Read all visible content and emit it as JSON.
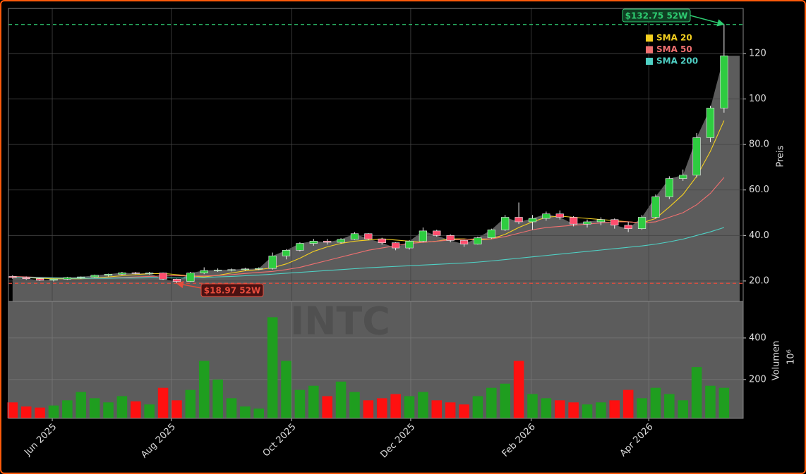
{
  "chart_data": {
    "type": "candlestick",
    "watermark": "INTC",
    "ohlc": {
      "open": [
        22,
        21.5,
        21,
        20.3,
        20.8,
        21.5,
        21.8,
        22.5,
        23,
        23.6,
        23.3,
        23.5,
        20.8,
        19.8,
        23.5,
        24.6,
        24.8,
        25,
        25.3,
        25.5,
        31,
        33.5,
        36.5,
        37.5,
        37,
        38.3,
        40.8,
        38.5,
        36.8,
        34.5,
        37.5,
        42,
        40,
        37.8,
        36.2,
        39,
        42.5,
        48,
        46,
        47.5,
        49.5,
        48,
        45,
        46,
        47,
        44.5,
        43,
        48,
        57,
        65,
        66.5,
        83,
        96
      ],
      "high": [
        22.5,
        22,
        21.3,
        21,
        21.8,
        22,
        22.8,
        23.2,
        24,
        24,
        24,
        23.7,
        21,
        24,
        26,
        25.5,
        25.5,
        25.8,
        26,
        32.5,
        34,
        37,
        38.5,
        38.5,
        38.8,
        41.5,
        41,
        39,
        37,
        38,
        43.5,
        42.5,
        40.5,
        38,
        39.5,
        43,
        49,
        54.5,
        49,
        50.5,
        51,
        48.5,
        47,
        48,
        47.5,
        46,
        49,
        58,
        66,
        69,
        85,
        97,
        132.75
      ],
      "low": [
        21,
        20.5,
        20,
        19.8,
        20.5,
        21,
        21.5,
        22,
        22.7,
        23,
        22.8,
        20.5,
        18.97,
        19.6,
        23,
        24,
        24.2,
        24.5,
        24.8,
        25,
        29.5,
        33,
        35.5,
        36,
        36.5,
        38,
        38,
        36,
        33.5,
        33.8,
        37,
        39.5,
        37,
        35,
        36,
        38.5,
        42,
        45,
        42.5,
        46.5,
        47,
        44,
        43.5,
        44.5,
        43,
        41.5,
        42.5,
        47.5,
        56,
        64,
        65.5,
        81,
        94
      ],
      "close": [
        21.5,
        21,
        20.3,
        20.8,
        21.5,
        21.8,
        22.5,
        23,
        23.6,
        23.3,
        23.5,
        20.8,
        19.8,
        23.5,
        24.6,
        24.8,
        25,
        25.3,
        25.5,
        31,
        33.5,
        36.5,
        37.5,
        37,
        38.3,
        40.8,
        38.5,
        36.8,
        34.5,
        37.5,
        42,
        40,
        37.8,
        36.2,
        39,
        42.5,
        48,
        46,
        47.5,
        49.5,
        48,
        45,
        46,
        47,
        44.5,
        43,
        48,
        57,
        65,
        66.5,
        83,
        96,
        119
      ]
    },
    "up_color": "#2ecc40",
    "down_color": "#ff4d6d",
    "area_color": "#5c5c5c",
    "series": [
      {
        "name": "SMA 20",
        "color": "#f5d020",
        "values": [
          21.5,
          21.5,
          21.2,
          21,
          21,
          21,
          21.3,
          21.8,
          22.3,
          22.8,
          23.2,
          23.3,
          22.8,
          22.2,
          21.8,
          22.5,
          23.5,
          24.5,
          25,
          25.8,
          27.5,
          30,
          33,
          35,
          36.5,
          37.5,
          38,
          38.5,
          38,
          37.5,
          37,
          37.5,
          38.5,
          38.5,
          38,
          38.5,
          40.5,
          43.5,
          46,
          48,
          48.5,
          48,
          47.5,
          47,
          46.5,
          46,
          45.5,
          47.5,
          52.5,
          58,
          66,
          77,
          90.5
        ]
      },
      {
        "name": "SMA 50",
        "color": "#f07070",
        "values": [
          22,
          21.8,
          21.6,
          21.4,
          21.3,
          21.2,
          21.2,
          21.3,
          21.5,
          21.8,
          22,
          22.2,
          22.3,
          22.2,
          22.2,
          22.4,
          22.8,
          23.3,
          23.8,
          24.2,
          25,
          26,
          27.5,
          29,
          30.5,
          32,
          33.5,
          34.5,
          35.5,
          36.5,
          37,
          37.5,
          38,
          38.3,
          38.5,
          38.5,
          39.5,
          41,
          42.5,
          43.5,
          44,
          44.5,
          45,
          45.5,
          46,
          46,
          45.5,
          46,
          48,
          50,
          53.5,
          58.5,
          65.5
        ]
      },
      {
        "name": "SMA 200",
        "color": "#4fd1c5",
        "values": [
          21.5,
          21.5,
          21.4,
          21.3,
          21.2,
          21.2,
          21.2,
          21.2,
          21.3,
          21.3,
          21.4,
          21.4,
          21.3,
          21.3,
          21.5,
          21.8,
          22,
          22.3,
          22.6,
          23,
          23.4,
          23.8,
          24.2,
          24.6,
          25,
          25.4,
          25.8,
          26.1,
          26.4,
          26.7,
          27,
          27.3,
          27.6,
          27.9,
          28.3,
          28.8,
          29.4,
          30,
          30.6,
          31.2,
          31.8,
          32.4,
          33,
          33.6,
          34.2,
          34.8,
          35.4,
          36.2,
          37.2,
          38.4,
          40,
          41.6,
          43.5
        ]
      }
    ],
    "ylim": [
      11,
      139.8
    ],
    "yticks": [
      {
        "value": 20,
        "label": "20.0"
      },
      {
        "value": 40,
        "label": "40.0"
      },
      {
        "value": 60,
        "label": "60.0"
      },
      {
        "value": 80,
        "label": "80.0"
      },
      100,
      120
    ],
    "y_label": "Preis",
    "xlim": [
      -0.3,
      53.4
    ],
    "xticks": [
      {
        "value": 2.9,
        "label": "Jun 2025"
      },
      {
        "value": 11.6,
        "label": "Aug 2025"
      },
      {
        "value": 20.4,
        "label": "Oct 2025"
      },
      {
        "value": 29.1,
        "label": "Dec 2025"
      },
      {
        "value": 37.9,
        "label": "Feb 2026"
      },
      {
        "value": 46.5,
        "label": "Apr 2026"
      }
    ],
    "grid": true,
    "legend": "upper right",
    "annotations": [
      {
        "value": 132.75,
        "label": "$132.75 52W",
        "color": "#2ecc71"
      },
      {
        "value": 18.97,
        "label": "$18.97 52W",
        "color": "#e74c3c"
      }
    ],
    "volume": {
      "values": [
        90,
        70,
        65,
        75,
        100,
        140,
        110,
        90,
        120,
        95,
        80,
        160,
        100,
        150,
        290,
        200,
        110,
        70,
        60,
        500,
        290,
        150,
        170,
        120,
        190,
        140,
        100,
        110,
        130,
        120,
        140,
        100,
        90,
        80,
        120,
        160,
        180,
        290,
        130,
        110,
        100,
        90,
        80,
        90,
        100,
        150,
        110,
        160,
        130,
        100,
        260,
        170,
        160
      ],
      "up_color": "#1f9e1f",
      "down_color": "#ff1010",
      "ylim": [
        13,
        576
      ],
      "yticks": [
        200,
        400
      ],
      "y_label": "Volumen",
      "multiplier": "10⁶"
    }
  }
}
